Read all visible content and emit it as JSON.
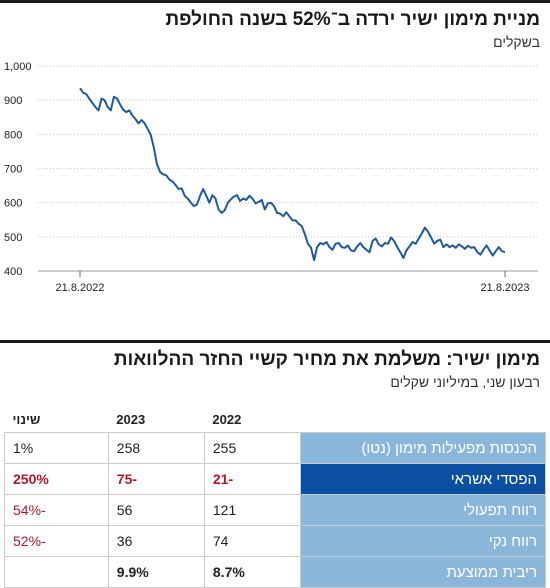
{
  "chart1": {
    "title": "מניית מימון ישיר ירדה ב־52% בשנה החולפת",
    "subtitle": "בשקלים",
    "line_color": "#1f5a9c",
    "chart_data": {
      "type": "line",
      "title": "מניית מימון ישיר ירדה ב־52% בשנה החולפת",
      "ylabel": "בשקלים",
      "ylim": [
        400,
        1000
      ],
      "yticks": [
        400,
        500,
        600,
        700,
        800,
        900,
        1000
      ],
      "ytick_labels": [
        "400",
        "500",
        "600",
        "700",
        "800",
        "900",
        "1,000"
      ],
      "xtick_labels": [
        "21.8.2022",
        "21.8.2023"
      ],
      "grid": true,
      "series": [
        {
          "values": [
            935,
            922,
            918,
            905,
            892,
            880,
            870,
            905,
            900,
            880,
            870,
            910,
            905,
            888,
            872,
            865,
            870,
            855,
            845,
            832,
            842,
            832,
            815,
            798,
            760,
            712,
            690,
            683,
            680,
            668,
            662,
            652,
            640,
            642,
            620,
            612,
            600,
            590,
            595,
            620,
            640,
            620,
            600,
            622,
            612,
            580,
            570,
            578,
            600,
            610,
            618,
            622,
            605,
            612,
            608,
            620,
            612,
            598,
            602,
            608,
            580,
            598,
            600,
            590,
            570,
            568,
            560,
            572,
            560,
            548,
            548,
            538,
            532,
            508,
            480,
            468,
            432,
            470,
            482,
            478,
            485,
            470,
            462,
            480,
            482,
            470,
            468,
            475,
            460,
            458,
            472,
            482,
            470,
            462,
            455,
            488,
            495,
            478,
            472,
            482,
            480,
            498,
            488,
            470,
            455,
            438,
            460,
            472,
            485,
            480,
            495,
            510,
            527,
            515,
            498,
            480,
            488,
            492,
            470,
            478,
            470,
            475,
            468,
            478,
            472,
            465,
            474,
            468,
            470,
            455,
            448,
            462,
            475,
            460,
            445,
            458,
            470,
            458,
            455
          ]
        }
      ]
    }
  },
  "chart2": {
    "title": "מימון ישיר: משלמת את מחיר קשיי החזר ההלוואות",
    "subtitle": "רבעון שני, במיליוני שקלים",
    "columns": [
      "2022",
      "2023",
      "שינוי"
    ],
    "rows": [
      {
        "label": "הכנסות מפעילות מימון (נטו)",
        "v2022": "255",
        "v2023": "258",
        "change": "1%"
      },
      {
        "label": "הפסדי אשראי",
        "v2022": "-21",
        "v2023": "-75",
        "change": "250%"
      },
      {
        "label": "רווח תפעולי",
        "v2022": "121",
        "v2023": "56",
        "change": "-54%"
      },
      {
        "label": "רווח נקי",
        "v2022": "74",
        "v2023": "36",
        "change": "-52%"
      },
      {
        "label": "ריבית ממוצעת",
        "v2022": "8.7%",
        "v2023": "9.9%",
        "change": ""
      }
    ],
    "label_color": "#8ab6da",
    "highlight_color": "#0b4fa0",
    "negative_color": "#b0172a"
  }
}
